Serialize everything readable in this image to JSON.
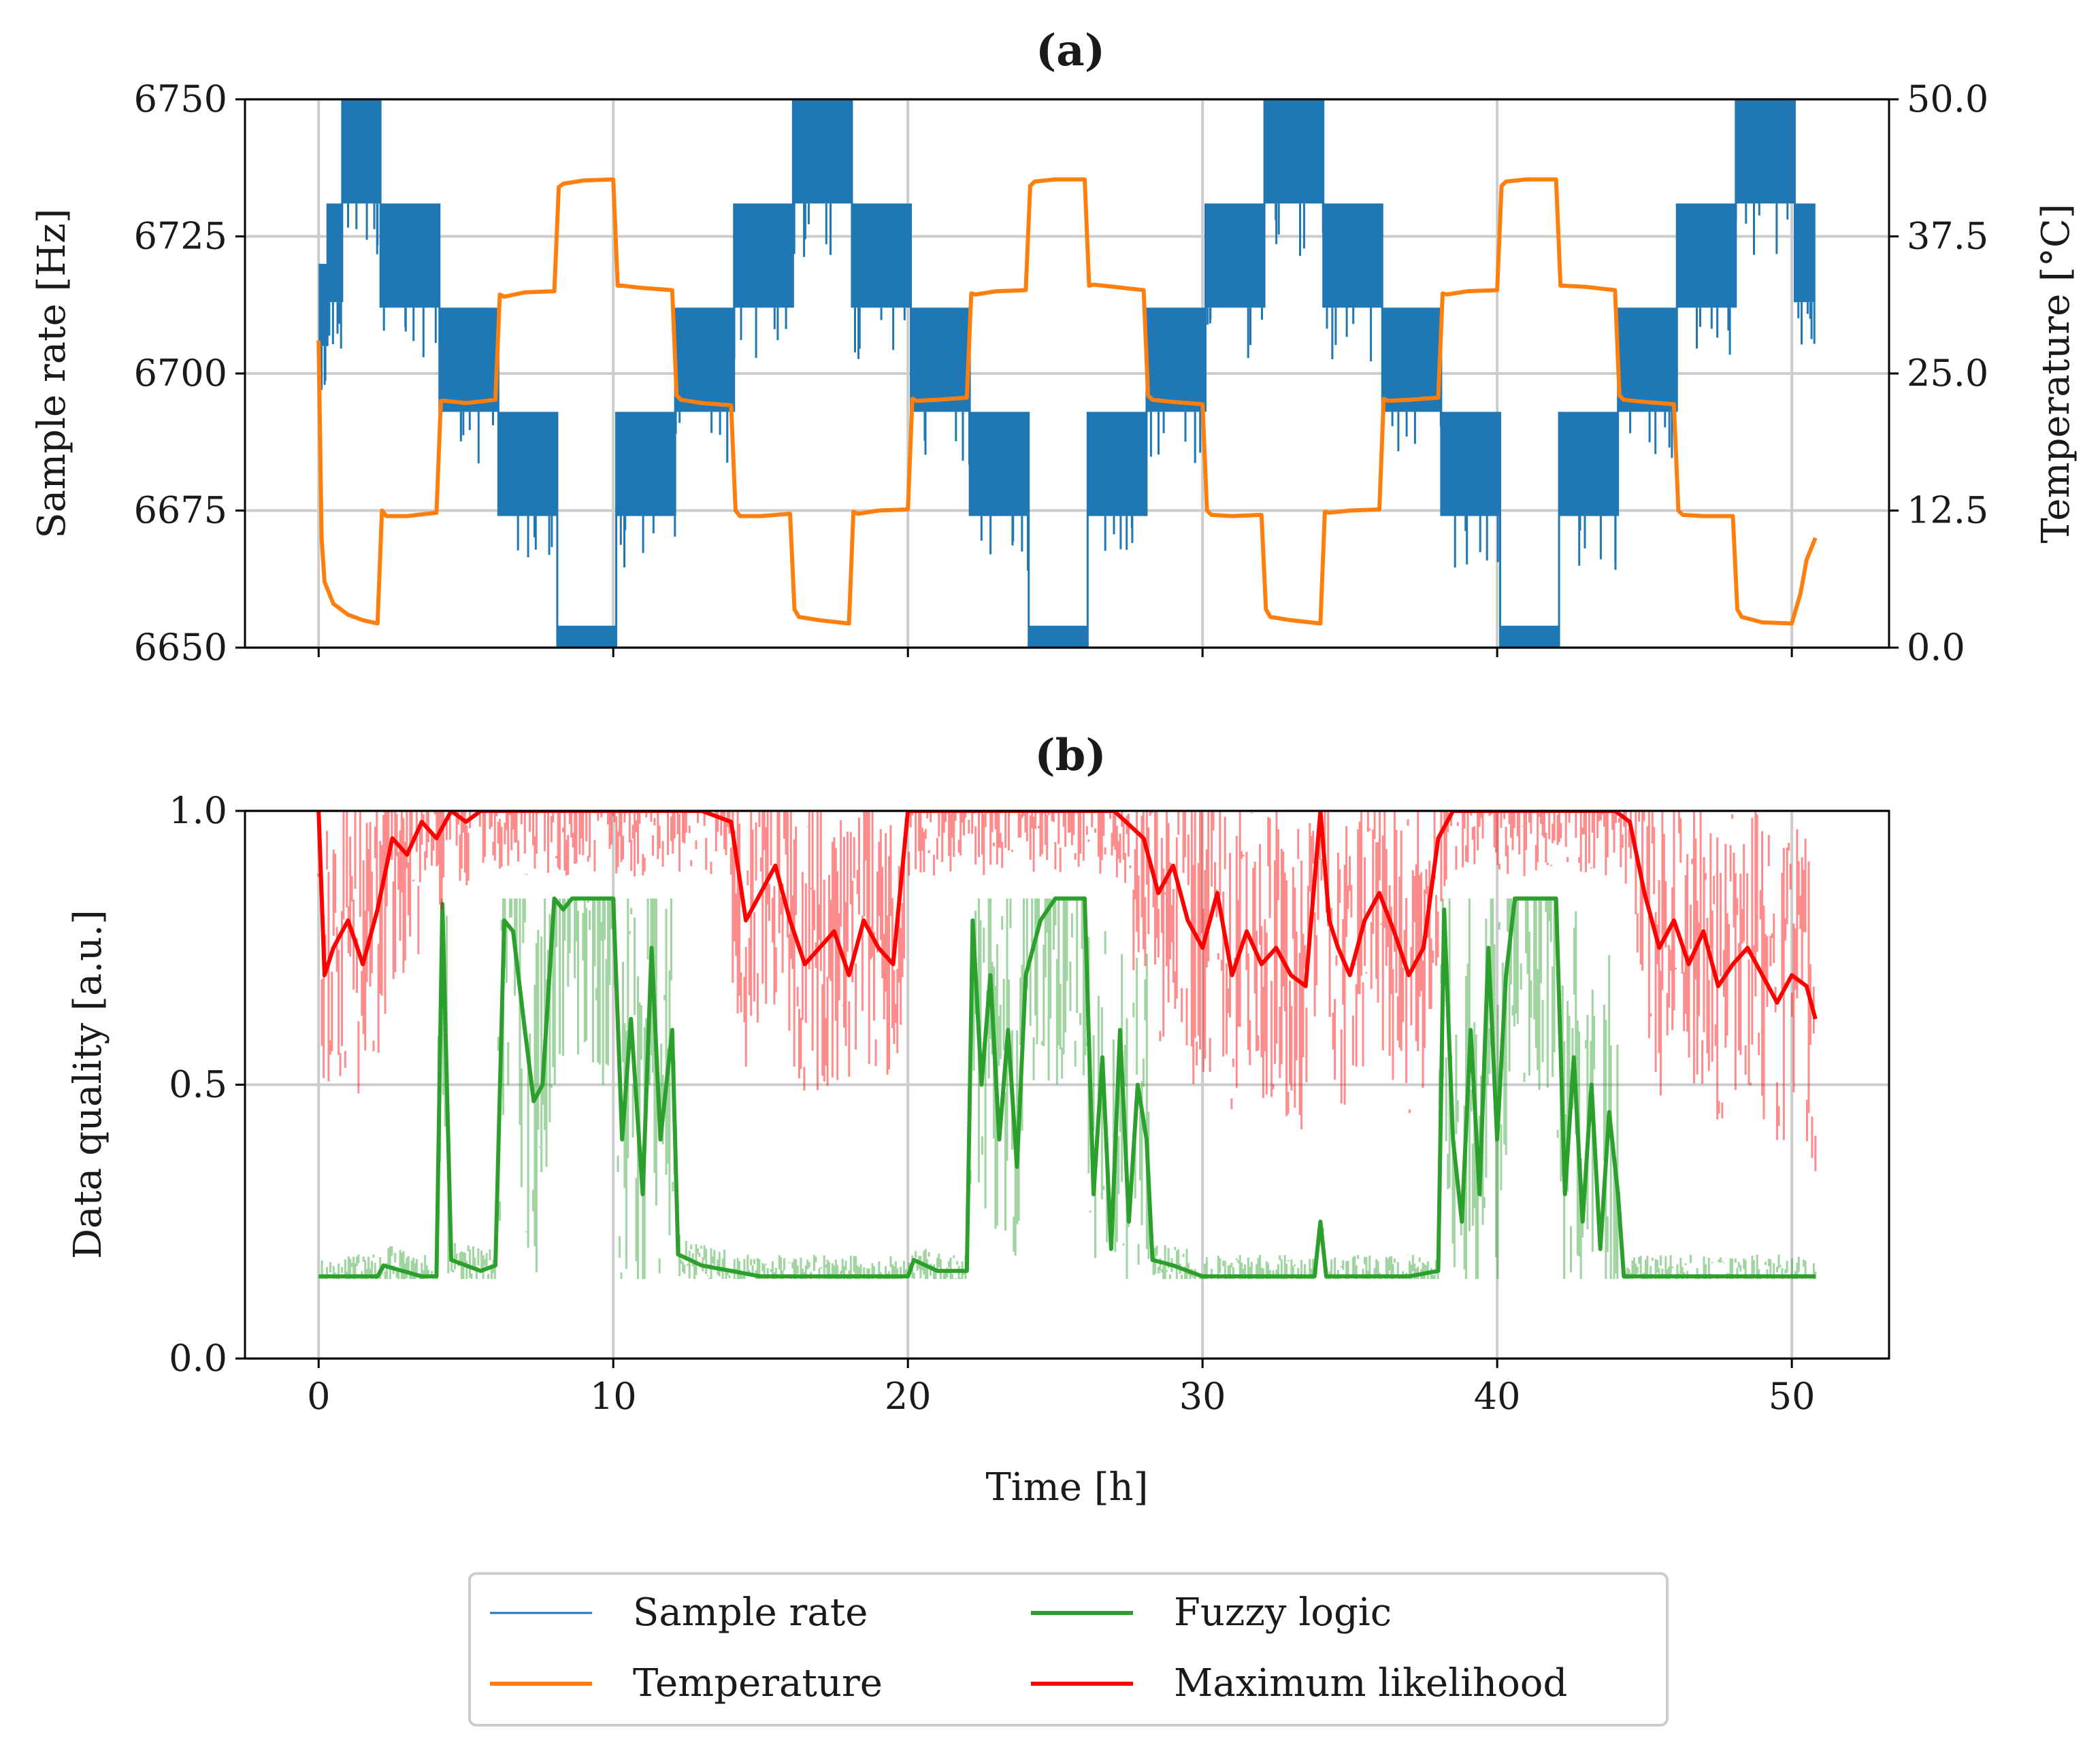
{
  "chart_data": [
    {
      "id": "a",
      "type": "line",
      "title": "(a)",
      "xlabel": "",
      "ylabel": "Sample rate [Hz]",
      "y2label": "Temperature [°C]",
      "xlim": [
        -2.5,
        53.3
      ],
      "ylim": [
        6650,
        6750
      ],
      "y2lim": [
        0.0,
        50.0
      ],
      "xticks": [
        0,
        10,
        20,
        30,
        40,
        50
      ],
      "yticks": [
        "6650",
        "6675",
        "6700",
        "6725",
        "6750"
      ],
      "y2ticks": [
        "0.0",
        "12.5",
        "25.0",
        "37.5",
        "50.0"
      ],
      "grid": true,
      "series": [
        {
          "name": "Sample rate",
          "axis": "left",
          "color": "#1f77b4",
          "levels": [
            {
              "start": 0.0,
              "end": 0.3,
              "low": 6705,
              "high": 6720
            },
            {
              "start": 0.3,
              "end": 0.8,
              "low": 6713,
              "high": 6731
            },
            {
              "start": 0.8,
              "end": 2.1,
              "low": 6731,
              "high": 6750
            },
            {
              "start": 2.1,
              "end": 4.1,
              "low": 6712,
              "high": 6731
            },
            {
              "start": 4.1,
              "end": 6.1,
              "low": 6693,
              "high": 6712
            },
            {
              "start": 6.1,
              "end": 8.1,
              "low": 6674,
              "high": 6693
            },
            {
              "start": 8.1,
              "end": 10.1,
              "low": 6650,
              "high": 6654
            },
            {
              "start": 10.1,
              "end": 12.1,
              "low": 6674,
              "high": 6693
            },
            {
              "start": 12.1,
              "end": 14.1,
              "low": 6693,
              "high": 6712
            },
            {
              "start": 14.1,
              "end": 16.1,
              "low": 6712,
              "high": 6731
            },
            {
              "start": 16.1,
              "end": 18.1,
              "low": 6731,
              "high": 6750
            },
            {
              "start": 18.1,
              "end": 20.1,
              "low": 6712,
              "high": 6731
            },
            {
              "start": 20.1,
              "end": 22.1,
              "low": 6693,
              "high": 6712
            },
            {
              "start": 22.1,
              "end": 24.1,
              "low": 6674,
              "high": 6693
            },
            {
              "start": 24.1,
              "end": 26.1,
              "low": 6650,
              "high": 6654
            },
            {
              "start": 26.1,
              "end": 28.1,
              "low": 6674,
              "high": 6693
            },
            {
              "start": 28.1,
              "end": 30.1,
              "low": 6693,
              "high": 6712
            },
            {
              "start": 30.1,
              "end": 32.1,
              "low": 6712,
              "high": 6731
            },
            {
              "start": 32.1,
              "end": 34.1,
              "low": 6731,
              "high": 6750
            },
            {
              "start": 34.1,
              "end": 36.1,
              "low": 6712,
              "high": 6731
            },
            {
              "start": 36.1,
              "end": 38.1,
              "low": 6693,
              "high": 6712
            },
            {
              "start": 38.1,
              "end": 40.1,
              "low": 6674,
              "high": 6693
            },
            {
              "start": 40.1,
              "end": 42.1,
              "low": 6650,
              "high": 6654
            },
            {
              "start": 42.1,
              "end": 44.1,
              "low": 6674,
              "high": 6693
            },
            {
              "start": 44.1,
              "end": 46.1,
              "low": 6693,
              "high": 6712
            },
            {
              "start": 46.1,
              "end": 48.1,
              "low": 6712,
              "high": 6731
            },
            {
              "start": 48.1,
              "end": 50.1,
              "low": 6731,
              "high": 6750
            },
            {
              "start": 50.1,
              "end": 50.8,
              "low": 6713,
              "high": 6731
            }
          ]
        },
        {
          "name": "Temperature",
          "axis": "right",
          "color": "#ff7f0e",
          "x": [
            0.0,
            0.1,
            0.2,
            0.5,
            1.0,
            1.5,
            2.0,
            2.15,
            2.3,
            3.0,
            4.0,
            4.15,
            4.3,
            5.0,
            6.0,
            6.15,
            6.3,
            7.0,
            8.0,
            8.15,
            8.3,
            9.0,
            10.0,
            10.15,
            10.3,
            11.0,
            12.0,
            12.15,
            12.3,
            13.0,
            14.0,
            14.15,
            14.3,
            15.0,
            16.0,
            16.15,
            16.3,
            17.0,
            18.0,
            18.15,
            18.3,
            19.0,
            20.0,
            20.15,
            20.3,
            21.0,
            22.0,
            22.15,
            22.3,
            23.0,
            24.0,
            24.15,
            24.3,
            25.0,
            26.0,
            26.15,
            26.3,
            27.0,
            28.0,
            28.15,
            28.3,
            29.0,
            30.0,
            30.15,
            30.3,
            31.0,
            32.0,
            32.15,
            32.3,
            33.0,
            34.0,
            34.15,
            34.3,
            35.0,
            36.0,
            36.15,
            36.3,
            37.0,
            38.0,
            38.15,
            38.3,
            39.0,
            40.0,
            40.15,
            40.3,
            41.0,
            42.0,
            42.15,
            42.3,
            43.0,
            44.0,
            44.15,
            44.3,
            45.0,
            46.0,
            46.15,
            46.3,
            47.0,
            48.0,
            48.15,
            48.3,
            49.0,
            50.0,
            50.3,
            50.5,
            50.8
          ],
          "values": [
            28.0,
            10.0,
            6.0,
            4.0,
            3.0,
            2.5,
            2.2,
            12.5,
            12.0,
            12.0,
            12.3,
            22.5,
            22.5,
            22.3,
            22.6,
            32.2,
            32.0,
            32.4,
            32.5,
            42.0,
            42.3,
            42.6,
            42.7,
            33.0,
            33.0,
            32.8,
            32.6,
            23.0,
            22.6,
            22.3,
            22.1,
            12.5,
            12.0,
            12.0,
            12.2,
            3.5,
            2.8,
            2.5,
            2.2,
            12.4,
            12.2,
            12.5,
            12.6,
            22.7,
            22.5,
            22.6,
            22.8,
            32.3,
            32.2,
            32.5,
            32.6,
            42.1,
            42.5,
            42.7,
            42.7,
            33.0,
            33.1,
            32.9,
            32.6,
            23.0,
            22.6,
            22.4,
            22.2,
            12.5,
            12.1,
            12.0,
            12.1,
            3.5,
            2.8,
            2.5,
            2.2,
            12.4,
            12.3,
            12.5,
            12.6,
            22.7,
            22.5,
            22.6,
            22.8,
            32.3,
            32.2,
            32.5,
            32.6,
            42.1,
            42.5,
            42.7,
            42.7,
            33.0,
            33.0,
            32.9,
            32.6,
            23.0,
            22.6,
            22.4,
            22.2,
            12.5,
            12.1,
            12.0,
            12.0,
            3.5,
            2.8,
            2.3,
            2.2,
            5.0,
            8.0,
            10.0
          ]
        }
      ]
    },
    {
      "id": "b",
      "type": "line",
      "title": "(b)",
      "xlabel": "Time [h]",
      "ylabel": "Data quality [a.u.]",
      "xlim": [
        -2.5,
        53.3
      ],
      "ylim": [
        0.0,
        1.0
      ],
      "xticks": [
        "0",
        "10",
        "20",
        "30",
        "40",
        "50"
      ],
      "yticks": [
        "0.0",
        "0.5",
        "1.0"
      ],
      "grid": true,
      "series": [
        {
          "name": "Fuzzy logic",
          "color": "#2ca02c",
          "x": [
            0.0,
            0.3,
            2.0,
            2.2,
            3.5,
            4.0,
            4.2,
            4.5,
            5.0,
            5.5,
            6.0,
            6.3,
            6.6,
            7.0,
            7.3,
            7.6,
            8.0,
            8.3,
            8.6,
            9.0,
            9.5,
            10.0,
            10.3,
            10.6,
            11.0,
            11.3,
            11.6,
            12.0,
            12.2,
            13.0,
            14.0,
            15.0,
            18.0,
            20.0,
            20.2,
            21.0,
            22.0,
            22.2,
            22.5,
            22.8,
            23.1,
            23.4,
            23.7,
            24.0,
            24.5,
            25.0,
            25.5,
            26.0,
            26.3,
            26.6,
            26.9,
            27.2,
            27.5,
            27.8,
            28.1,
            28.3,
            29.0,
            30.0,
            32.0,
            33.8,
            34.0,
            34.2,
            36.0,
            37.0,
            38.0,
            38.2,
            38.5,
            38.8,
            39.1,
            39.4,
            39.7,
            40.0,
            40.3,
            40.6,
            41.0,
            42.0,
            42.3,
            42.6,
            42.9,
            43.2,
            43.5,
            43.8,
            44.1,
            44.3,
            45.0,
            46.0,
            48.0,
            50.8
          ],
          "values": [
            0.15,
            0.15,
            0.15,
            0.17,
            0.15,
            0.15,
            0.83,
            0.18,
            0.17,
            0.16,
            0.17,
            0.8,
            0.78,
            0.6,
            0.47,
            0.5,
            0.84,
            0.82,
            0.84,
            0.84,
            0.84,
            0.84,
            0.4,
            0.62,
            0.3,
            0.75,
            0.4,
            0.6,
            0.19,
            0.17,
            0.16,
            0.15,
            0.15,
            0.15,
            0.18,
            0.16,
            0.16,
            0.8,
            0.5,
            0.7,
            0.4,
            0.6,
            0.35,
            0.7,
            0.8,
            0.84,
            0.84,
            0.84,
            0.3,
            0.55,
            0.2,
            0.6,
            0.25,
            0.5,
            0.4,
            0.18,
            0.17,
            0.15,
            0.15,
            0.15,
            0.25,
            0.15,
            0.15,
            0.15,
            0.16,
            0.82,
            0.4,
            0.25,
            0.6,
            0.3,
            0.75,
            0.4,
            0.7,
            0.84,
            0.84,
            0.84,
            0.3,
            0.55,
            0.25,
            0.5,
            0.2,
            0.45,
            0.3,
            0.15,
            0.15,
            0.15,
            0.15,
            0.15
          ]
        },
        {
          "name": "Maximum likelihood",
          "color": "#ff0000",
          "x": [
            0.0,
            0.2,
            0.5,
            1.0,
            1.5,
            2.0,
            2.5,
            3.0,
            3.5,
            4.0,
            4.5,
            5.0,
            5.5,
            6.0,
            6.5,
            7.0,
            8.0,
            9.0,
            10.0,
            11.0,
            12.0,
            13.0,
            14.0,
            14.5,
            15.0,
            15.5,
            16.0,
            16.5,
            17.0,
            17.5,
            18.0,
            18.5,
            19.0,
            19.5,
            20.0,
            21.0,
            22.0,
            23.0,
            24.0,
            25.0,
            26.0,
            27.0,
            28.0,
            28.5,
            29.0,
            29.5,
            30.0,
            30.5,
            31.0,
            31.5,
            32.0,
            32.5,
            33.0,
            33.5,
            34.0,
            34.3,
            34.6,
            35.0,
            35.5,
            36.0,
            36.5,
            37.0,
            37.5,
            38.0,
            38.5,
            39.0,
            40.0,
            41.0,
            42.0,
            43.0,
            44.0,
            44.5,
            45.0,
            45.5,
            46.0,
            46.5,
            47.0,
            47.5,
            48.0,
            48.5,
            49.0,
            49.5,
            50.0,
            50.5,
            50.8
          ],
          "values": [
            1.0,
            0.7,
            0.75,
            0.8,
            0.72,
            0.82,
            0.95,
            0.92,
            0.98,
            0.95,
            1.0,
            0.98,
            1.0,
            1.0,
            1.0,
            1.0,
            1.0,
            1.0,
            1.0,
            1.0,
            1.0,
            1.0,
            0.98,
            0.8,
            0.85,
            0.9,
            0.8,
            0.72,
            0.75,
            0.78,
            0.7,
            0.8,
            0.75,
            0.72,
            1.0,
            1.0,
            1.0,
            1.0,
            1.0,
            1.0,
            1.0,
            1.0,
            0.95,
            0.85,
            0.9,
            0.8,
            0.75,
            0.85,
            0.7,
            0.78,
            0.72,
            0.75,
            0.7,
            0.68,
            1.0,
            0.8,
            0.75,
            0.7,
            0.8,
            0.85,
            0.78,
            0.7,
            0.75,
            0.95,
            1.0,
            1.0,
            1.0,
            1.0,
            1.0,
            1.0,
            1.0,
            0.98,
            0.85,
            0.75,
            0.8,
            0.72,
            0.78,
            0.68,
            0.72,
            0.75,
            0.7,
            0.65,
            0.7,
            0.68,
            0.62
          ]
        }
      ]
    }
  ],
  "legend": {
    "placement": "bottom-center",
    "items": [
      {
        "label": "Sample rate",
        "color": "#1f77b4",
        "style": "thin"
      },
      {
        "label": "Fuzzy logic",
        "color": "#2ca02c",
        "style": "thick"
      },
      {
        "label": "Temperature",
        "color": "#ff7f0e",
        "style": "thick"
      },
      {
        "label": "Maximum likelihood",
        "color": "#ff0000",
        "style": "thick"
      }
    ]
  }
}
